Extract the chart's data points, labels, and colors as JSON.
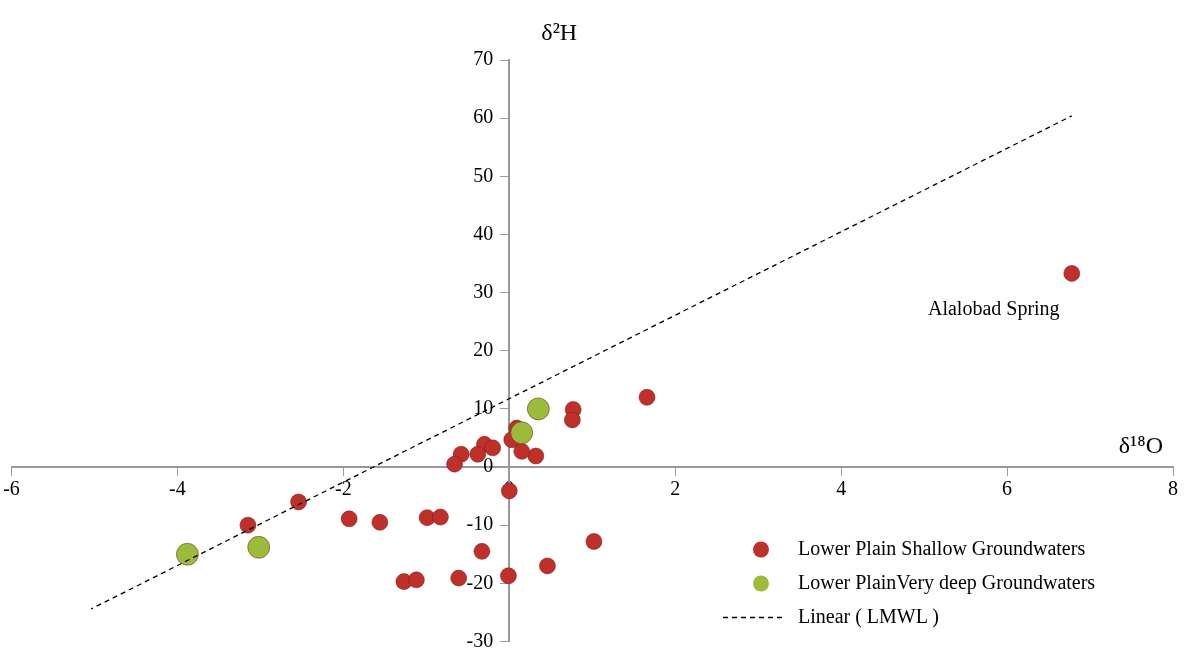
{
  "chart_data": {
    "type": "scatter",
    "xlabel": "δ¹⁸O",
    "ylabel": "δ²H",
    "xlim": [
      -6,
      8
    ],
    "ylim": [
      -30,
      70
    ],
    "xticks": [
      -6,
      -4,
      -2,
      0,
      2,
      4,
      6,
      8
    ],
    "yticks": [
      -30,
      -20,
      -10,
      0,
      10,
      20,
      30,
      40,
      50,
      60,
      70
    ],
    "grid": false,
    "legend": "bottom right",
    "marker": "circle",
    "series": [
      {
        "name": "Lower Plain Shallow Groundwaters",
        "color": "#c0302a",
        "x": [
          1.66,
          0.77,
          0.76,
          0.32,
          0.09,
          0.03,
          0.15,
          -0.3,
          -0.2,
          -0.38,
          -0.58,
          -0.66,
          0,
          -2.54,
          -3.15,
          -1.93,
          -1.56,
          -0.99,
          -0.83,
          -0.33,
          1.02,
          0.46,
          -0.01,
          -0.61,
          -1.27,
          -1.12,
          6.78
        ],
        "values": [
          12,
          9.9,
          8.1,
          1.9,
          6.7,
          4.7,
          2.7,
          3.9,
          3.3,
          2.2,
          2.2,
          0.5,
          -4.1,
          -6,
          -10,
          -8.9,
          -9.5,
          -8.7,
          -8.6,
          -14.5,
          -12.8,
          -17,
          -18.7,
          -19.1,
          -19.7,
          -19.4,
          33.3
        ]
      },
      {
        "name": "Lower PlainVery deep Groundwaters",
        "color": "#9bbb3a",
        "x": [
          -3.88,
          -3.02,
          0.35,
          0.15
        ],
        "values": [
          -15,
          -13.8,
          10,
          5.9
        ]
      },
      {
        "name": "Linear ( LMWL )",
        "type": "line",
        "color": "#000000",
        "marker": "none",
        "line_style": "dashed",
        "x": [
          -5.04,
          6.78
        ],
        "values": [
          -24.4,
          60.4
        ]
      }
    ],
    "annotations": [
      {
        "text": "Alalobad Spring",
        "x": 6.78,
        "y": 33.3
      }
    ]
  }
}
